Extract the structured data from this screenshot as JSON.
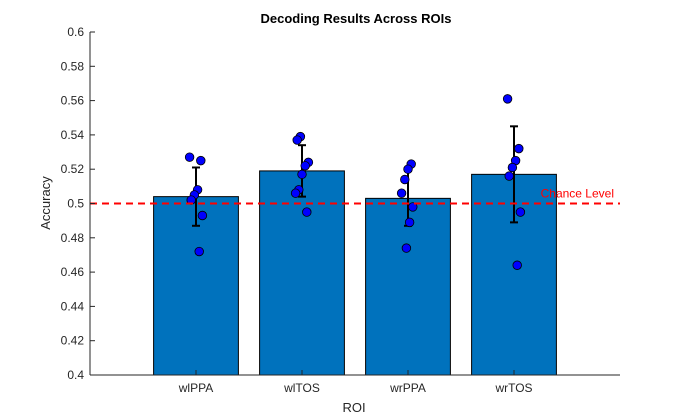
{
  "chart_data": {
    "type": "bar",
    "title": "Decoding Results Across ROIs",
    "xlabel": "ROI",
    "ylabel": "Accuracy",
    "categories": [
      "wlPPA",
      "wlTOS",
      "wrPPA",
      "wrTOS"
    ],
    "values": [
      0.504,
      0.519,
      0.503,
      0.517
    ],
    "error": [
      0.017,
      0.015,
      0.016,
      0.028
    ],
    "points": [
      [
        0.527,
        0.525,
        0.508,
        0.505,
        0.502,
        0.493,
        0.472
      ],
      [
        0.539,
        0.537,
        0.524,
        0.522,
        0.517,
        0.508,
        0.506,
        0.495
      ],
      [
        0.523,
        0.52,
        0.514,
        0.506,
        0.498,
        0.489,
        0.474
      ],
      [
        0.561,
        0.532,
        0.525,
        0.521,
        0.516,
        0.495,
        0.464
      ]
    ],
    "ylim": [
      0.4,
      0.6
    ],
    "yticks": [
      "0.4",
      "0.42",
      "0.44",
      "0.46",
      "0.48",
      "0.5",
      "0.52",
      "0.54",
      "0.56",
      "0.58",
      "0.6"
    ],
    "reference_line": {
      "y": 0.5,
      "label": "Chance Level",
      "color": "#ff0000"
    },
    "bar_color": "#0072bd",
    "point_color": "#0000ff"
  }
}
